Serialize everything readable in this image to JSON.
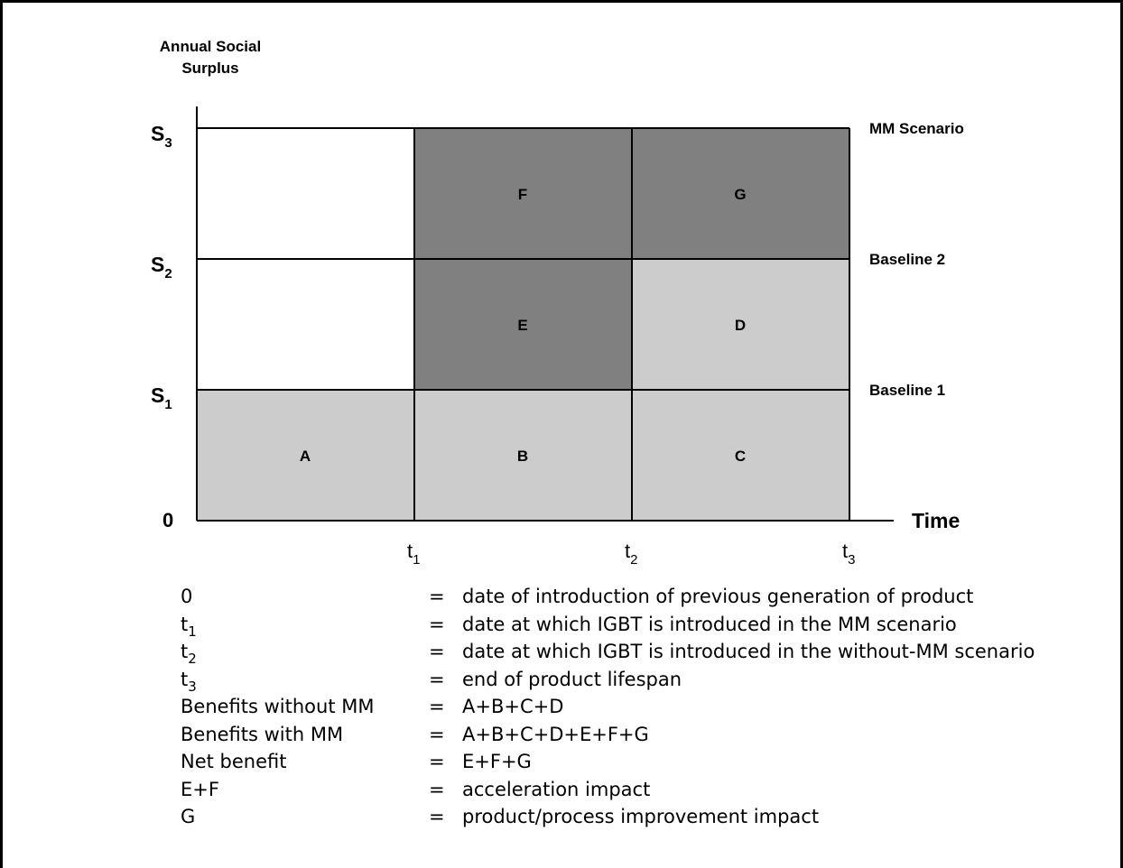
{
  "axes": {
    "y_title_line1": "Annual Social",
    "y_title_line2": "Surplus",
    "x_title": "Time",
    "origin": "0",
    "y_ticks": [
      {
        "base": "S",
        "sub": "3"
      },
      {
        "base": "S",
        "sub": "2"
      },
      {
        "base": "S",
        "sub": "1"
      }
    ],
    "x_ticks": [
      {
        "base": "t",
        "sub": "1"
      },
      {
        "base": "t",
        "sub": "2"
      },
      {
        "base": "t",
        "sub": "3"
      }
    ]
  },
  "scenario_labels": {
    "mm": "MM Scenario",
    "baseline2": "Baseline 2",
    "baseline1": "Baseline 1"
  },
  "regions": {
    "A": "A",
    "B": "B",
    "C": "C",
    "D": "D",
    "E": "E",
    "F": "F",
    "G": "G"
  },
  "colors": {
    "light_gray": "#cccccc",
    "dark_gray": "#808080",
    "line": "#000000"
  },
  "legend": [
    {
      "term": "0",
      "term_sub": "",
      "eq": "=",
      "def": "date of introduction of previous generation of product"
    },
    {
      "term": "t",
      "term_sub": "1",
      "eq": "=",
      "def": "date at which IGBT is introduced in the MM scenario"
    },
    {
      "term": "t",
      "term_sub": "2",
      "eq": "=",
      "def": "date at which IGBT is introduced in the without-MM scenario"
    },
    {
      "term": "t",
      "term_sub": "3",
      "eq": "=",
      "def": "end of product lifespan"
    },
    {
      "term": "Benefits without MM",
      "term_sub": "",
      "eq": "=",
      "def": "A+B+C+D"
    },
    {
      "term": "Benefits with MM",
      "term_sub": "",
      "eq": "=",
      "def": "A+B+C+D+E+F+G"
    },
    {
      "term": "Net benefit",
      "term_sub": "",
      "eq": "=",
      "def": "E+F+G"
    },
    {
      "term": "E+F",
      "term_sub": "",
      "eq": "=",
      "def": "acceleration impact"
    },
    {
      "term": "G",
      "term_sub": "",
      "eq": "=",
      "def": "product/process improvement impact"
    }
  ]
}
